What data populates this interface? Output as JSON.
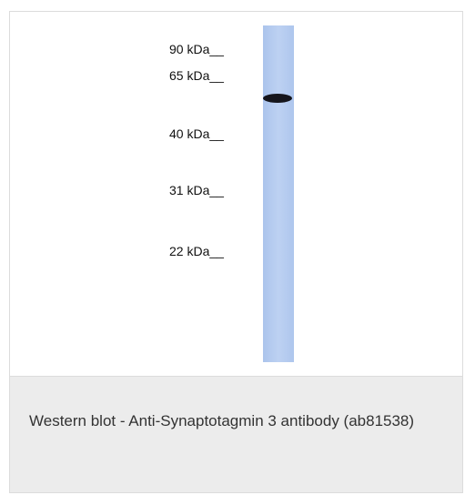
{
  "figure": {
    "markers": [
      "90 kDa__",
      "65 kDa__",
      "40 kDa__",
      "31 kDa__",
      "22 kDa__"
    ]
  },
  "caption": "Western blot - Anti-Synaptotagmin 3 antibody (ab81538)"
}
